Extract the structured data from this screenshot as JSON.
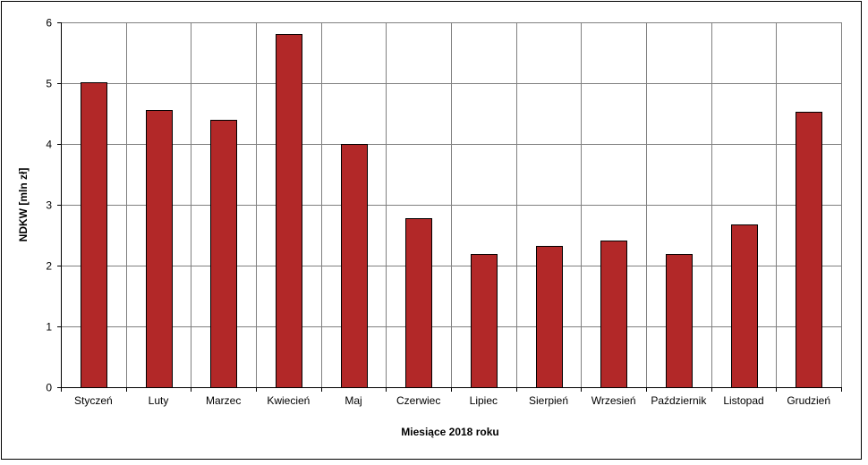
{
  "chart_data": {
    "type": "bar",
    "title": "",
    "xlabel": "Miesiące 2018  roku",
    "ylabel": "NDKW [mln zł]",
    "categories": [
      "Styczeń",
      "Luty",
      "Marzec",
      "Kwiecień",
      "Maj",
      "Czerwiec",
      "Lipiec",
      "Sierpień",
      "Wrzesień",
      "Październik",
      "Listopad",
      "Grudzień"
    ],
    "series": [
      {
        "values": [
          5.02,
          4.56,
          4.4,
          5.81,
          4.0,
          2.78,
          2.19,
          2.33,
          2.41,
          2.19,
          2.67,
          4.53
        ]
      }
    ],
    "ylim": [
      0,
      6
    ],
    "yticks": [
      0,
      1,
      2,
      3,
      4,
      5,
      6
    ],
    "grid": true,
    "legend": "none",
    "colors": {
      "bar": "#b22828",
      "bar_stroke": "#000000",
      "grid": "#808080"
    }
  }
}
